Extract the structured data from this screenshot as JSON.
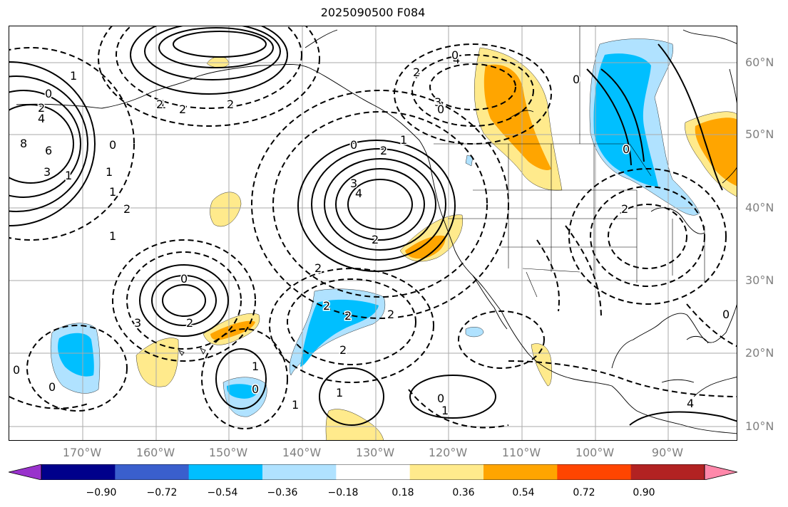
{
  "title": "2025090500 F084",
  "latitude_labels": [
    "60°N",
    "50°N",
    "40°N",
    "30°N",
    "20°N",
    "10°N"
  ],
  "longitude_labels": [
    "170°W",
    "160°W",
    "150°W",
    "140°W",
    "130°W",
    "120°W",
    "110°W",
    "100°W",
    "90°W"
  ],
  "colorbar": {
    "ticks": [
      "−0.90",
      "−0.72",
      "−0.54",
      "−0.36",
      "−0.18",
      "0.18",
      "0.36",
      "0.54",
      "0.72",
      "0.90"
    ],
    "colors": [
      "#9932cc",
      "#00008b",
      "#3a5fcd",
      "#00bfff",
      "#b0e2ff",
      "#ffffff",
      "#ffea8c",
      "#ffa500",
      "#ff4500",
      "#b22222",
      "#ff88aa"
    ]
  },
  "contour_labels": [
    "1",
    "0",
    "2",
    "4",
    "8",
    "6",
    "3",
    "1",
    "0",
    "1",
    "1",
    "2",
    "2",
    "2",
    "0",
    "2",
    "3",
    "4",
    "1",
    "2",
    "2",
    "3",
    "4",
    "0",
    "2",
    "2",
    "0",
    "2",
    "3",
    "2",
    "2",
    "2",
    "2",
    "1",
    "0",
    "1",
    "0",
    "1",
    "1",
    "0",
    "0",
    "1",
    "2",
    "1",
    "0",
    "0",
    "0",
    "4",
    "0"
  ],
  "shading_colors": {
    "pos_light": "#ffea8c",
    "pos_strong": "#ffa500",
    "neg_light": "#b0e2ff",
    "neg_strong": "#00bfff"
  }
}
